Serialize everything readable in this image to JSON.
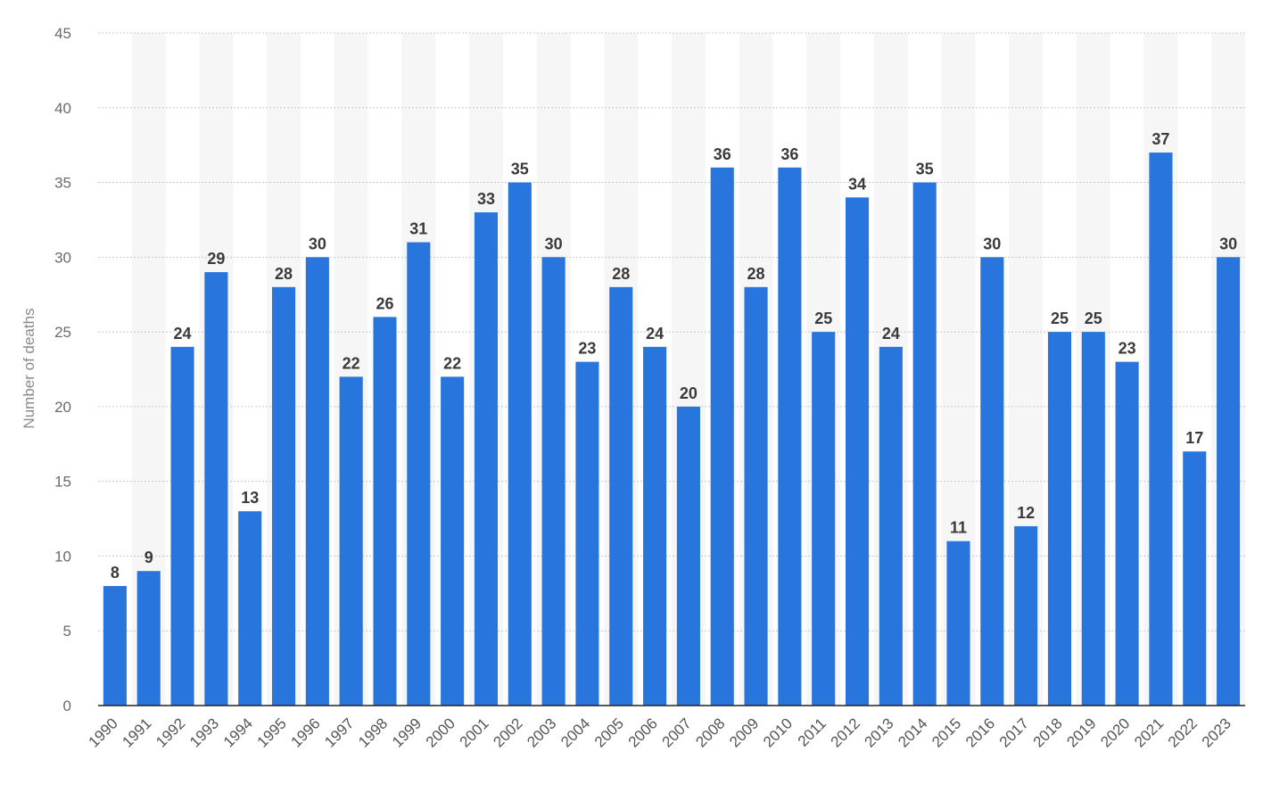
{
  "chart_data": {
    "type": "bar",
    "categories": [
      "1990",
      "1991",
      "1992",
      "1993",
      "1994",
      "1995",
      "1996",
      "1997",
      "1998",
      "1999",
      "2000",
      "2001",
      "2002",
      "2003",
      "2004",
      "2005",
      "2006",
      "2007",
      "2008",
      "2009",
      "2010",
      "2011",
      "2012",
      "2013",
      "2014",
      "2015",
      "2016",
      "2017",
      "2018",
      "2019",
      "2020",
      "2021",
      "2022",
      "2023"
    ],
    "values": [
      8,
      9,
      24,
      29,
      13,
      28,
      30,
      22,
      26,
      31,
      22,
      33,
      35,
      30,
      23,
      28,
      24,
      20,
      36,
      28,
      36,
      25,
      34,
      24,
      35,
      11,
      30,
      12,
      25,
      25,
      23,
      37,
      17,
      30
    ],
    "title": "",
    "xlabel": "",
    "ylabel": "Number of deaths",
    "ylim": [
      0,
      45
    ],
    "yticks": [
      0,
      5,
      10,
      15,
      20,
      25,
      30,
      35,
      40,
      45
    ],
    "grid": true,
    "data_labels": true,
    "colors": {
      "bar": "#2876dd",
      "band": "#f6f6f6",
      "grid": "#c8c8c8",
      "axis": "#222222"
    }
  }
}
